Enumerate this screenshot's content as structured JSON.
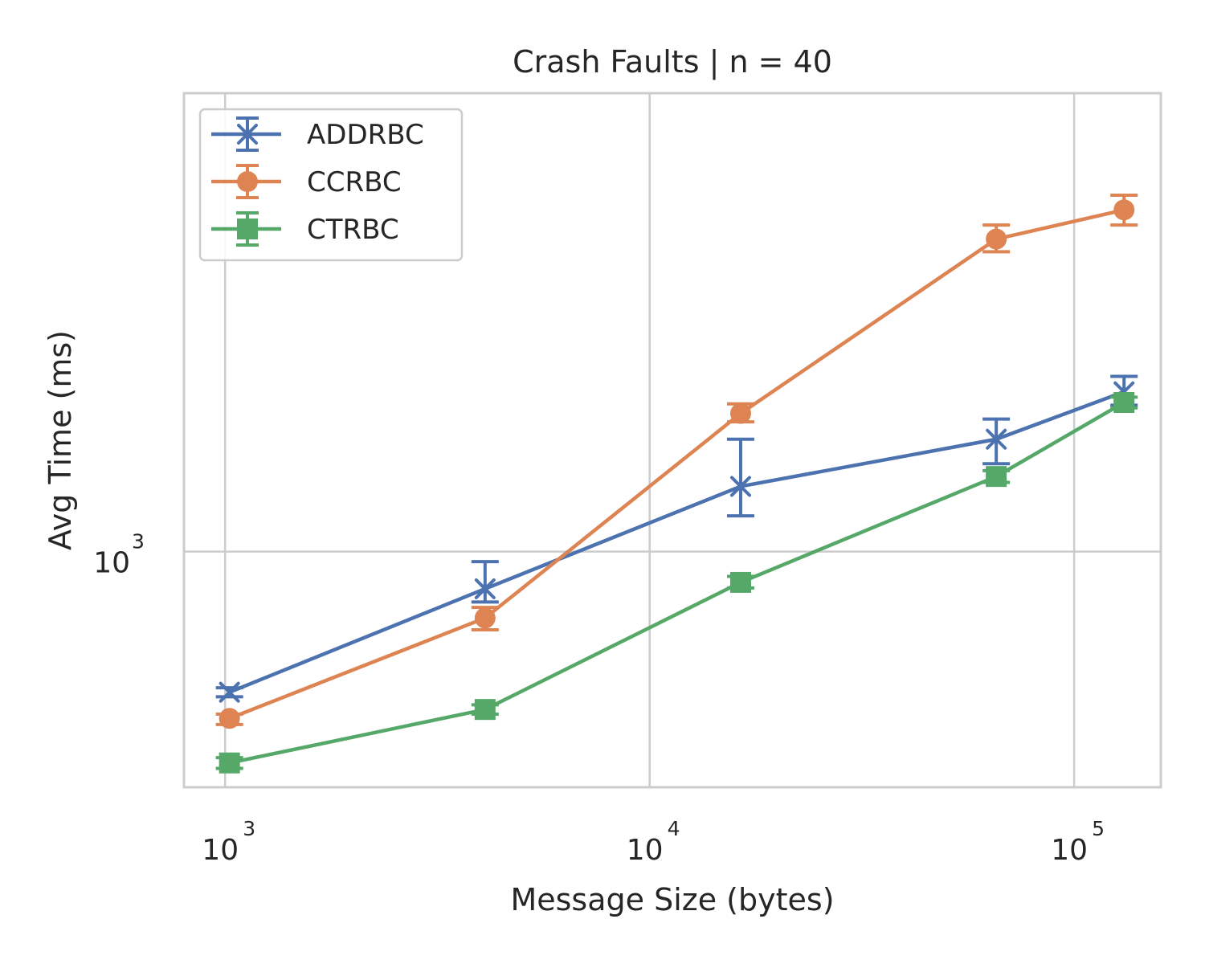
{
  "chart_data": {
    "type": "line",
    "title": "Crash Faults | n = 40",
    "xlabel": "Message Size (bytes)",
    "ylabel": "Avg Time (ms)",
    "xscale": "log",
    "yscale": "log",
    "xlim": [
      800,
      160000
    ],
    "ylim": [
      550,
      3200
    ],
    "grid": true,
    "legend_position": "top-left",
    "x_ticks": [
      {
        "value": 1000,
        "base": "10",
        "exp": "3"
      },
      {
        "value": 10000,
        "base": "10",
        "exp": "4"
      },
      {
        "value": 100000,
        "base": "10",
        "exp": "5"
      }
    ],
    "y_ticks": [
      {
        "value": 1000,
        "base": "10",
        "exp": "3"
      }
    ],
    "x": [
      1024,
      4096,
      16384,
      65536,
      131072
    ],
    "series": [
      {
        "name": "ADDRBC",
        "marker": "x",
        "color": "#4c72b0",
        "values": [
          700,
          910,
          1180,
          1330,
          1500
        ],
        "err_low": [
          692,
          880,
          1095,
          1250,
          1450
        ],
        "err_high": [
          708,
          975,
          1330,
          1400,
          1560
        ]
      },
      {
        "name": "CCRBC",
        "marker": "circle",
        "color": "#dd8452",
        "values": [
          655,
          845,
          1420,
          2210,
          2380
        ],
        "err_low": [
          645,
          820,
          1390,
          2140,
          2290
        ],
        "err_high": [
          662,
          868,
          1455,
          2290,
          2470
        ]
      },
      {
        "name": "CTRBC",
        "marker": "square",
        "color": "#55a868",
        "values": [
          585,
          670,
          925,
          1210,
          1460
        ],
        "err_low": [
          577,
          662,
          912,
          1192,
          1440
        ],
        "err_high": [
          593,
          678,
          939,
          1228,
          1480
        ]
      }
    ]
  }
}
